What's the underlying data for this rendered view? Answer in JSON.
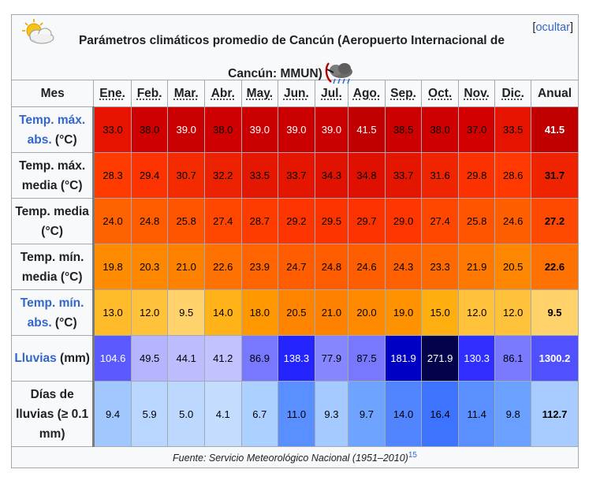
{
  "caption": {
    "line1": "Parámetros climáticos promedio de Cancún (Aeropuerto Internacional de",
    "line2": "Cancún: MMUN)",
    "hide_open": "[",
    "hide_label": "ocultar",
    "hide_close": "]"
  },
  "header": {
    "first": "Mes",
    "months": [
      "Ene.",
      "Feb.",
      "Mar.",
      "Abr.",
      "May.",
      "Jun.",
      "Jul.",
      "Ago.",
      "Sep.",
      "Oct.",
      "Nov.",
      "Dic."
    ],
    "annual": "Anual"
  },
  "rows": [
    {
      "label_link": "Temp. máx. abs.",
      "label_rest": " (°C)",
      "values": [
        "33.0",
        "38.0",
        "39.0",
        "38.0",
        "39.0",
        "39.0",
        "39.0",
        "41.5",
        "38.5",
        "38.0",
        "37.0",
        "33.5"
      ],
      "annual": "41.5",
      "colors": [
        "#e71200",
        "#ce0000",
        "#ca0000",
        "#ce0000",
        "#ca0000",
        "#ca0000",
        "#ca0000",
        "#c00000",
        "#cc0000",
        "#ce0000",
        "#d30000",
        "#e61300"
      ],
      "annual_color": "#c00000",
      "text_colors": [
        "#000000",
        "#000000",
        "#ffffff",
        "#000000",
        "#ffffff",
        "#ffffff",
        "#ffffff",
        "#ffffff",
        "#000000",
        "#000000",
        "#000000",
        "#000000"
      ],
      "annual_text": "#ffffff"
    },
    {
      "label_link": "",
      "label_rest": "Temp. máx. media (°C)",
      "values": [
        "28.3",
        "29.4",
        "30.7",
        "32.2",
        "33.5",
        "33.7",
        "34.3",
        "34.8",
        "33.7",
        "31.6",
        "29.8",
        "28.6"
      ],
      "annual": "31.7",
      "colors": [
        "#ff3b00",
        "#fc3300",
        "#f52b00",
        "#ec2100",
        "#e41700",
        "#e41600",
        "#e11300",
        "#e01000",
        "#e41600",
        "#f02500",
        "#fb3100",
        "#ff3900"
      ],
      "annual_color": "#ef2300",
      "text_colors": [
        "#000000",
        "#000000",
        "#000000",
        "#000000",
        "#000000",
        "#000000",
        "#000000",
        "#000000",
        "#000000",
        "#000000",
        "#000000",
        "#000000"
      ],
      "annual_text": "#000000"
    },
    {
      "label_link": "",
      "label_rest": "Temp. media (°C)",
      "values": [
        "24.0",
        "24.8",
        "25.8",
        "27.4",
        "28.7",
        "29.2",
        "29.5",
        "29.7",
        "29.0",
        "27.4",
        "25.8",
        "24.6"
      ],
      "annual": "27.2",
      "colors": [
        "#ff6200",
        "#ff5c00",
        "#ff5400",
        "#ff4700",
        "#ff3c00",
        "#fd3600",
        "#fc3400",
        "#fb3300",
        "#fe3700",
        "#ff4700",
        "#ff5400",
        "#ff5e00"
      ],
      "annual_color": "#ff4800",
      "text_colors": [
        "#000000",
        "#000000",
        "#000000",
        "#000000",
        "#000000",
        "#000000",
        "#000000",
        "#000000",
        "#000000",
        "#000000",
        "#000000",
        "#000000"
      ],
      "annual_text": "#000000"
    },
    {
      "label_link": "",
      "label_rest": "Temp. mín. media (°C)",
      "values": [
        "19.8",
        "20.3",
        "21.0",
        "22.6",
        "23.9",
        "24.7",
        "24.8",
        "24.6",
        "24.3",
        "23.3",
        "21.9",
        "20.5"
      ],
      "annual": "22.6",
      "colors": [
        "#ff8c00",
        "#ff8700",
        "#ff8100",
        "#ff7100",
        "#ff6400",
        "#ff5d00",
        "#ff5c00",
        "#ff5e00",
        "#ff6000",
        "#ff6a00",
        "#ff7900",
        "#ff8600"
      ],
      "annual_color": "#ff7100",
      "text_colors": [
        "#000000",
        "#000000",
        "#000000",
        "#000000",
        "#000000",
        "#000000",
        "#000000",
        "#000000",
        "#000000",
        "#000000",
        "#000000",
        "#000000"
      ],
      "annual_text": "#000000"
    },
    {
      "label_link": "Temp. mín. abs.",
      "label_rest": " (°C)",
      "values": [
        "13.0",
        "12.0",
        "9.5",
        "14.0",
        "18.0",
        "20.5",
        "21.0",
        "20.0",
        "19.0",
        "15.0",
        "12.0",
        "12.0"
      ],
      "annual": "9.5",
      "colors": [
        "#ffbb2a",
        "#ffc23a",
        "#ffd26c",
        "#ffb318",
        "#ff9800",
        "#ff8500",
        "#ff8100",
        "#ff8a00",
        "#ff9200",
        "#ffae10",
        "#ffc23a",
        "#ffc23a"
      ],
      "annual_color": "#ffd26c",
      "text_colors": [
        "#000000",
        "#000000",
        "#000000",
        "#000000",
        "#000000",
        "#000000",
        "#000000",
        "#000000",
        "#000000",
        "#000000",
        "#000000",
        "#000000"
      ],
      "annual_text": "#000000"
    },
    {
      "label_link": "Lluvias",
      "label_rest": " (mm)",
      "values": [
        "104.6",
        "49.5",
        "44.1",
        "41.2",
        "86.9",
        "138.3",
        "77.9",
        "87.5",
        "181.9",
        "271.9",
        "130.3",
        "86.1"
      ],
      "annual": "1300.2",
      "colors": [
        "#5a5aff",
        "#b4b4ff",
        "#bcbcff",
        "#c2c2ff",
        "#7878ff",
        "#2424ff",
        "#8686ff",
        "#7878ff",
        "#0000c4",
        "#02024a",
        "#2f2fff",
        "#7a7aff"
      ],
      "annual_color": "#5050ff",
      "text_colors": [
        "#ffffff",
        "#000000",
        "#000000",
        "#000000",
        "#000000",
        "#ffffff",
        "#000000",
        "#000000",
        "#ffffff",
        "#ffffff",
        "#ffffff",
        "#000000"
      ],
      "annual_text": "#ffffff"
    },
    {
      "label_link": "",
      "label_rest": "Días de lluvias (≥ 0.1 mm)",
      "values": [
        "9.4",
        "5.9",
        "5.0",
        "4.1",
        "6.7",
        "11.0",
        "9.3",
        "9.7",
        "14.0",
        "16.4",
        "11.4",
        "9.8"
      ],
      "annual": "112.7",
      "colors": [
        "#a0c8ff",
        "#b8d6ff",
        "#bcd8ff",
        "#c4ddff",
        "#acd0ff",
        "#5a8fff",
        "#a4caff",
        "#6ea4ff",
        "#5085ff",
        "#3d74ff",
        "#5a8fff",
        "#6aa0ff"
      ],
      "annual_color": "#a8ccff",
      "text_colors": [
        "#000000",
        "#000000",
        "#000000",
        "#000000",
        "#000000",
        "#000000",
        "#000000",
        "#000000",
        "#000000",
        "#000000",
        "#000000",
        "#000000"
      ],
      "annual_text": "#000000"
    }
  ],
  "footer": {
    "source": "Fuente: Servicio Meteorológico Nacional (1951–2010)",
    "ref": "15"
  },
  "icons": [
    "sun-cloud-icon",
    "storm-cloud-icon"
  ]
}
